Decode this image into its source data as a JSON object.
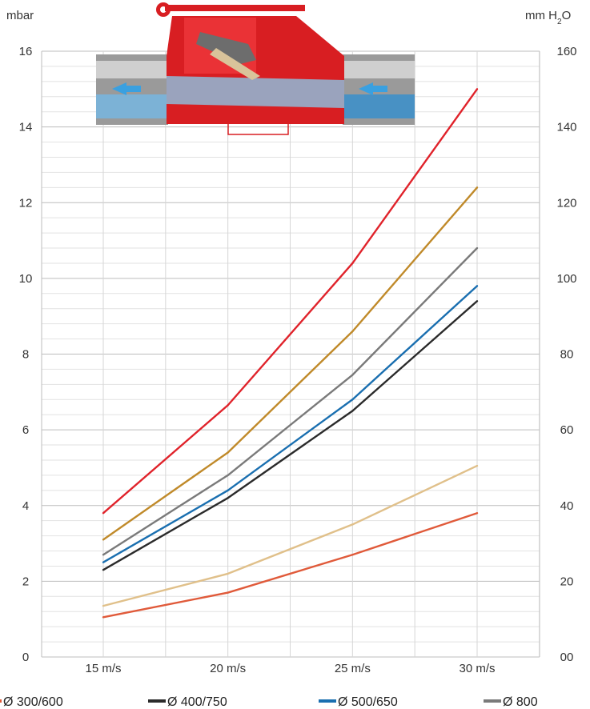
{
  "chart_data": {
    "type": "line",
    "left_axis_unit": "mbar",
    "right_axis_unit": "mm H2O",
    "right_axis_unit_main": "mm H",
    "right_axis_unit_sub": "2",
    "right_axis_unit_tail": "O",
    "x_categories": [
      "15 m/s",
      "20 m/s",
      "25 m/s",
      "30 m/s"
    ],
    "ylim": [
      0,
      16
    ],
    "y_ticks": [
      0,
      2,
      4,
      6,
      8,
      10,
      12,
      14,
      16
    ],
    "y_tick_labels": [
      "0",
      "2",
      "4",
      "6",
      "8",
      "10",
      "12",
      "14",
      "16"
    ],
    "y2_ticks": [
      "00",
      "20",
      "40",
      "60",
      "80",
      "100",
      "120",
      "140",
      "160"
    ],
    "grid": true,
    "series": [
      {
        "name": "Ø 300/600",
        "color": "#e05a3a",
        "values": [
          1.05,
          1.7,
          2.7,
          3.8
        ]
      },
      {
        "name": "",
        "color": "#e0c08a",
        "values": [
          1.35,
          2.2,
          3.5,
          5.05
        ]
      },
      {
        "name": "Ø 400/750",
        "color": "#2b2b2b",
        "values": [
          2.3,
          4.2,
          6.5,
          9.4
        ]
      },
      {
        "name": "Ø 500/650",
        "color": "#1a6fb0",
        "values": [
          2.5,
          4.4,
          6.8,
          9.8
        ]
      },
      {
        "name": "Ø 800",
        "color": "#7a7a7a",
        "values": [
          2.7,
          4.8,
          7.45,
          10.8
        ]
      },
      {
        "name": "",
        "color": "#c08a2a",
        "values": [
          3.1,
          5.4,
          8.6,
          12.4
        ]
      },
      {
        "name": "",
        "color": "#e0232b",
        "values": [
          3.8,
          6.65,
          10.4,
          15.0
        ]
      }
    ],
    "legend": [
      {
        "label": "Ø 300/600",
        "color": "#e05a3a"
      },
      {
        "label": "Ø 400/750",
        "color": "#2b2b2b"
      },
      {
        "label": "Ø 500/650",
        "color": "#1a6fb0"
      },
      {
        "label": "Ø 800",
        "color": "#7a7a7a"
      }
    ],
    "legend_position": "bottom"
  },
  "illustration": {
    "name": "red pinch valve with pipes and blue flow arrows"
  }
}
